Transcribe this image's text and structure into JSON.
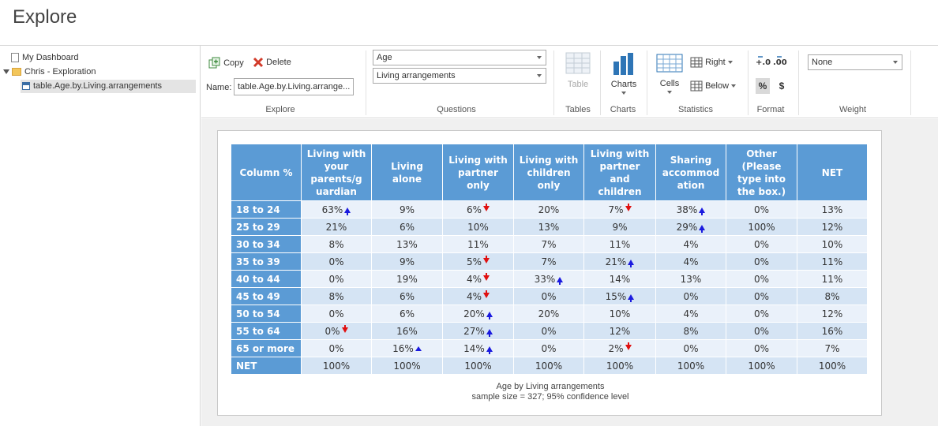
{
  "page_title": "Explore",
  "sidebar": {
    "items": [
      {
        "label": "My Dashboard"
      },
      {
        "label": "Chris - Exploration"
      },
      {
        "label": "table.Age.by.Living.arrangements"
      }
    ]
  },
  "ribbon": {
    "explore": {
      "copy_label": "Copy",
      "delete_label": "Delete",
      "name_label": "Name:",
      "name_value": "table.Age.by.Living.arrange...",
      "group_label": "Explore"
    },
    "questions": {
      "q1": "Age",
      "q2": "Living arrangements",
      "group_label": "Questions"
    },
    "tables": {
      "table_label": "Table",
      "group_label": "Tables"
    },
    "charts": {
      "charts_label": "Charts",
      "group_label": "Charts"
    },
    "statistics": {
      "cells_label": "Cells",
      "right_label": "Right",
      "below_label": "Below",
      "group_label": "Statistics"
    },
    "format": {
      "pct_label": "%",
      "dollar_label": "$",
      "inc_label": "+.0 .00",
      "group_label": "Format"
    },
    "weight": {
      "value": "None",
      "group_label": "Weight"
    }
  },
  "crosstab": {
    "corner": "Column %",
    "columns": [
      [
        "Living with",
        "your",
        "parents/g",
        "uardian"
      ],
      [
        "Living",
        "alone"
      ],
      [
        "Living with",
        "partner",
        "only"
      ],
      [
        "Living with",
        "children",
        "only"
      ],
      [
        "Living with",
        "partner",
        "and",
        "children"
      ],
      [
        "Sharing",
        "accommod",
        "ation"
      ],
      [
        "Other",
        "(Please",
        "type into",
        "the box.)"
      ],
      [
        "NET"
      ]
    ],
    "rows": [
      {
        "label": "18 to 24",
        "cells": [
          {
            "v": "63%",
            "s": "up"
          },
          {
            "v": "9%",
            "s": ""
          },
          {
            "v": "6%",
            "s": "down"
          },
          {
            "v": "20%",
            "s": ""
          },
          {
            "v": "7%",
            "s": "down"
          },
          {
            "v": "38%",
            "s": "up"
          },
          {
            "v": "0%",
            "s": ""
          },
          {
            "v": "13%",
            "s": ""
          }
        ]
      },
      {
        "label": "25 to 29",
        "cells": [
          {
            "v": "21%",
            "s": ""
          },
          {
            "v": "6%",
            "s": ""
          },
          {
            "v": "10%",
            "s": ""
          },
          {
            "v": "13%",
            "s": ""
          },
          {
            "v": "9%",
            "s": ""
          },
          {
            "v": "29%",
            "s": "up"
          },
          {
            "v": "100%",
            "s": ""
          },
          {
            "v": "12%",
            "s": ""
          }
        ]
      },
      {
        "label": "30 to 34",
        "cells": [
          {
            "v": "8%",
            "s": ""
          },
          {
            "v": "13%",
            "s": ""
          },
          {
            "v": "11%",
            "s": ""
          },
          {
            "v": "7%",
            "s": ""
          },
          {
            "v": "11%",
            "s": ""
          },
          {
            "v": "4%",
            "s": ""
          },
          {
            "v": "0%",
            "s": ""
          },
          {
            "v": "10%",
            "s": ""
          }
        ]
      },
      {
        "label": "35 to 39",
        "cells": [
          {
            "v": "0%",
            "s": ""
          },
          {
            "v": "9%",
            "s": ""
          },
          {
            "v": "5%",
            "s": "down"
          },
          {
            "v": "7%",
            "s": ""
          },
          {
            "v": "21%",
            "s": "up"
          },
          {
            "v": "4%",
            "s": ""
          },
          {
            "v": "0%",
            "s": ""
          },
          {
            "v": "11%",
            "s": ""
          }
        ]
      },
      {
        "label": "40 to 44",
        "cells": [
          {
            "v": "0%",
            "s": ""
          },
          {
            "v": "19%",
            "s": ""
          },
          {
            "v": "4%",
            "s": "down"
          },
          {
            "v": "33%",
            "s": "up"
          },
          {
            "v": "14%",
            "s": ""
          },
          {
            "v": "13%",
            "s": ""
          },
          {
            "v": "0%",
            "s": ""
          },
          {
            "v": "11%",
            "s": ""
          }
        ]
      },
      {
        "label": "45 to 49",
        "cells": [
          {
            "v": "8%",
            "s": ""
          },
          {
            "v": "6%",
            "s": ""
          },
          {
            "v": "4%",
            "s": "down"
          },
          {
            "v": "0%",
            "s": ""
          },
          {
            "v": "15%",
            "s": "up"
          },
          {
            "v": "0%",
            "s": ""
          },
          {
            "v": "0%",
            "s": ""
          },
          {
            "v": "8%",
            "s": ""
          }
        ]
      },
      {
        "label": "50 to 54",
        "cells": [
          {
            "v": "0%",
            "s": ""
          },
          {
            "v": "6%",
            "s": ""
          },
          {
            "v": "20%",
            "s": "up"
          },
          {
            "v": "20%",
            "s": ""
          },
          {
            "v": "10%",
            "s": ""
          },
          {
            "v": "4%",
            "s": ""
          },
          {
            "v": "0%",
            "s": ""
          },
          {
            "v": "12%",
            "s": ""
          }
        ]
      },
      {
        "label": "55 to 64",
        "cells": [
          {
            "v": "0%",
            "s": "down"
          },
          {
            "v": "16%",
            "s": ""
          },
          {
            "v": "27%",
            "s": "up"
          },
          {
            "v": "0%",
            "s": ""
          },
          {
            "v": "12%",
            "s": ""
          },
          {
            "v": "8%",
            "s": ""
          },
          {
            "v": "0%",
            "s": ""
          },
          {
            "v": "16%",
            "s": ""
          }
        ]
      },
      {
        "label": "65 or more",
        "cells": [
          {
            "v": "0%",
            "s": ""
          },
          {
            "v": "16%",
            "s": "up-small"
          },
          {
            "v": "14%",
            "s": "up"
          },
          {
            "v": "0%",
            "s": ""
          },
          {
            "v": "2%",
            "s": "down"
          },
          {
            "v": "0%",
            "s": ""
          },
          {
            "v": "0%",
            "s": ""
          },
          {
            "v": "7%",
            "s": ""
          }
        ]
      },
      {
        "label": "NET",
        "cells": [
          {
            "v": "100%",
            "s": ""
          },
          {
            "v": "100%",
            "s": ""
          },
          {
            "v": "100%",
            "s": ""
          },
          {
            "v": "100%",
            "s": ""
          },
          {
            "v": "100%",
            "s": ""
          },
          {
            "v": "100%",
            "s": ""
          },
          {
            "v": "100%",
            "s": ""
          },
          {
            "v": "100%",
            "s": ""
          }
        ]
      }
    ],
    "footnote_title": "Age by Living arrangements",
    "footnote_sample": "sample size = 327; 95% confidence level"
  },
  "colors": {
    "header_blue": "#5b9bd5",
    "row_light": "#eaf1fa",
    "row_dark": "#d5e4f4",
    "up": "#1a1adf",
    "down": "#e01010"
  }
}
